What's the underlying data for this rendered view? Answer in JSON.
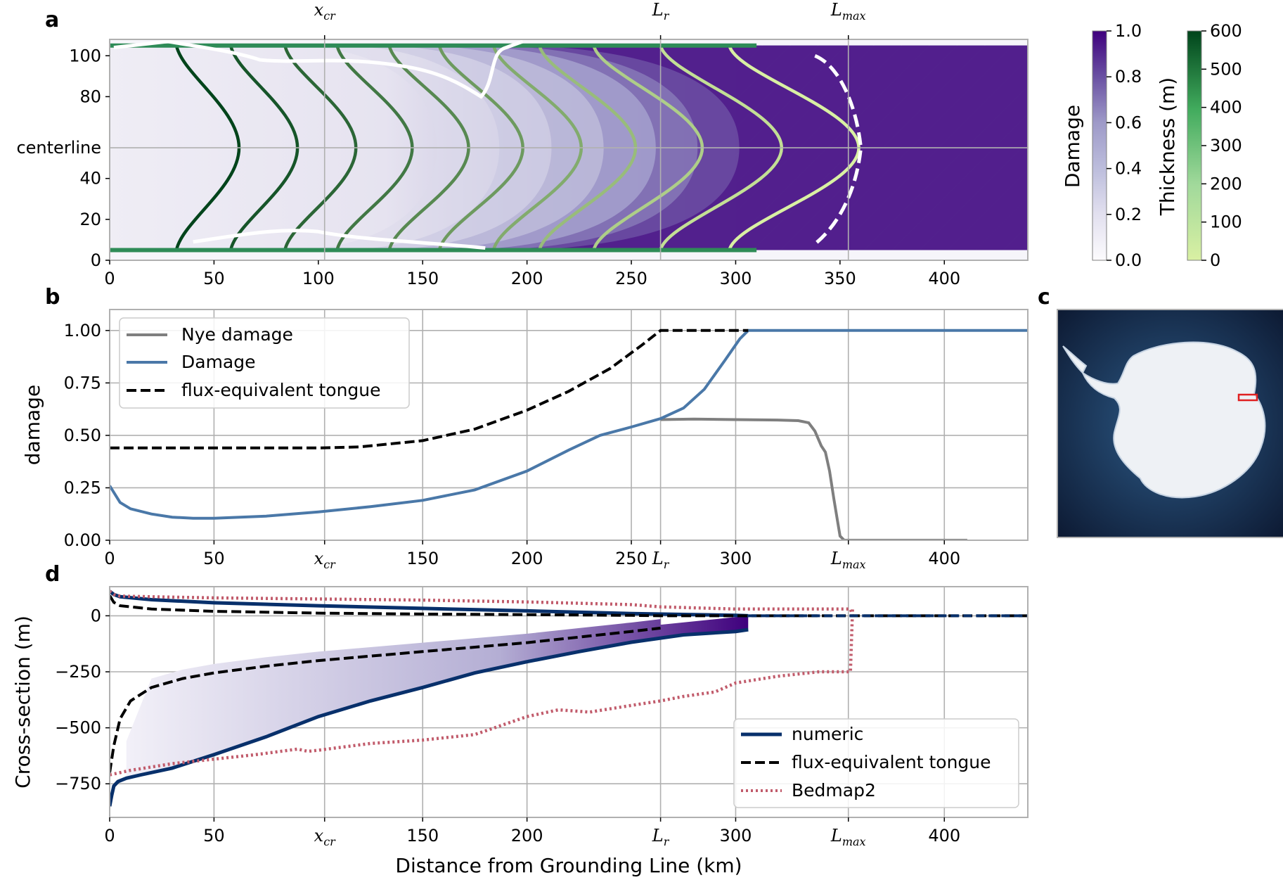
{
  "panel_letters": {
    "a": "a",
    "b": "b",
    "c": "c",
    "d": "d"
  },
  "markers": {
    "x_cr": 103,
    "L_r": 264,
    "L_max": 354
  },
  "marker_labels": {
    "x_cr": "x",
    "x_cr_sub": "cr",
    "L_r": "L",
    "L_r_sub": "r",
    "L_max": "L",
    "L_max_sub": "max"
  },
  "xlabel": "Distance from Grounding Line (km)",
  "colors": {
    "damage_dark": "#3f007d",
    "damage_light": "#efedf5",
    "thickness_dark": "#00441b",
    "thickness_light": "#d9f0a3",
    "nye": "#7f7f7f",
    "damage_line": "#4a78a8",
    "numeric": "#08306b",
    "bedmap": "#c15b6b",
    "grid": "#b0b0b0"
  },
  "chart_data": [
    {
      "panel": "a",
      "type": "heatmap",
      "xlim": [
        0,
        440
      ],
      "ylim": [
        0,
        108
      ],
      "xticks": [
        0,
        50,
        100,
        150,
        200,
        250,
        300,
        350,
        400
      ],
      "yticks": [
        0,
        20,
        40,
        80,
        100
      ],
      "ytick_labels": [
        "0",
        "20",
        "40",
        "80",
        "100"
      ],
      "centerline_label": "centerline",
      "centerline_y": 55,
      "channel_y": [
        5,
        105
      ],
      "damage_fill": "damage increases downstream; fully damaged (1.0) hatched region beyond about 300 km",
      "hatch_start": 300,
      "thickness_contours_km_at_centerline": [
        62,
        90,
        118,
        145,
        172,
        198,
        226,
        252,
        284,
        322,
        359
      ],
      "thickness_contour_edge_offset_km": [
        -30,
        -32,
        -34,
        -36,
        -38,
        -40,
        -42,
        -46,
        -52,
        -58,
        -62
      ],
      "thickness_contour_values_m": [
        600,
        550,
        500,
        450,
        400,
        350,
        300,
        250,
        200,
        150,
        100
      ],
      "colorbars": [
        {
          "label": "Damage",
          "ticks": [
            "0.0",
            "0.2",
            "0.4",
            "0.6",
            "0.8",
            "1.0"
          ],
          "min": 0,
          "max": 1
        },
        {
          "label": "Thickness (m)",
          "ticks": [
            "0",
            "100",
            "200",
            "300",
            "400",
            "500",
            "600"
          ],
          "min": 0,
          "max": 600
        }
      ]
    },
    {
      "panel": "b",
      "type": "line",
      "ylabel": "damage",
      "xlim": [
        0,
        440
      ],
      "ylim": [
        0,
        1.1
      ],
      "yticks": [
        "0.00",
        "0.25",
        "0.50",
        "0.75",
        "1.00"
      ],
      "xtick_values": [
        0,
        50,
        150,
        200,
        250,
        300,
        400
      ],
      "legend_position": "top-left",
      "series": [
        {
          "name": "Nye damage",
          "style": "solid-gray",
          "x": [
            264,
            280,
            300,
            320,
            330,
            335,
            338,
            341,
            343,
            345,
            347,
            349,
            350,
            352,
            360,
            380,
            411
          ],
          "y": [
            0.575,
            0.578,
            0.575,
            0.573,
            0.57,
            0.56,
            0.52,
            0.45,
            0.42,
            0.33,
            0.2,
            0.08,
            0.02,
            0.0,
            0.0,
            0.0,
            0.0
          ]
        },
        {
          "name": "Damage",
          "style": "solid-blue",
          "x": [
            0,
            5,
            10,
            20,
            30,
            40,
            50,
            75,
            100,
            125,
            150,
            175,
            200,
            220,
            235,
            250,
            264,
            275,
            285,
            295,
            302,
            306,
            320,
            360,
            400,
            440
          ],
          "y": [
            0.26,
            0.18,
            0.15,
            0.125,
            0.11,
            0.105,
            0.105,
            0.115,
            0.135,
            0.16,
            0.19,
            0.24,
            0.33,
            0.43,
            0.5,
            0.54,
            0.58,
            0.63,
            0.72,
            0.86,
            0.96,
            1.0,
            1.0,
            1.0,
            1.0,
            1.0
          ]
        },
        {
          "name": "flux-equivalent tongue",
          "style": "dashed-black",
          "x": [
            0,
            50,
            100,
            120,
            150,
            175,
            200,
            220,
            240,
            255,
            264,
            280,
            300,
            306
          ],
          "y": [
            0.44,
            0.44,
            0.44,
            0.445,
            0.475,
            0.53,
            0.62,
            0.71,
            0.82,
            0.93,
            1.0,
            1.0,
            1.0,
            1.0
          ]
        }
      ]
    },
    {
      "panel": "c",
      "type": "map",
      "description_marker": "red rectangle"
    },
    {
      "panel": "d",
      "type": "line",
      "ylabel": "Cross-section (m)",
      "xlim": [
        0,
        440
      ],
      "ylim": [
        -900,
        130
      ],
      "yticks": [
        "0",
        "−250",
        "−500",
        "−750"
      ],
      "ytick_values": [
        0,
        -250,
        -500,
        -750
      ],
      "xtick_values": [
        0,
        50,
        150,
        200,
        300,
        400
      ],
      "legend_position": "bottom-right",
      "series": [
        {
          "name": "numeric",
          "style": "solid-navy",
          "part": "surface",
          "x": [
            0,
            2,
            5,
            20,
            50,
            100,
            150,
            200,
            250,
            300,
            306
          ],
          "y": [
            110,
            95,
            85,
            72,
            58,
            45,
            33,
            22,
            10,
            2,
            0
          ]
        },
        {
          "name": "numeric",
          "style": "solid-navy",
          "part": "base",
          "x": [
            0,
            1,
            2,
            4,
            8,
            15,
            30,
            50,
            75,
            100,
            125,
            150,
            175,
            200,
            225,
            250,
            275,
            300,
            306
          ],
          "y": [
            -850,
            -800,
            -760,
            -740,
            -725,
            -710,
            -680,
            -620,
            -540,
            -450,
            -380,
            -320,
            -255,
            -205,
            -160,
            -118,
            -85,
            -70,
            -62
          ]
        },
        {
          "name": "flux-equivalent tongue",
          "style": "dashed-black",
          "part": "surface",
          "x": [
            0,
            2,
            5,
            20,
            50,
            100,
            150,
            200,
            250,
            264,
            300,
            440
          ],
          "y": [
            90,
            60,
            45,
            30,
            20,
            12,
            8,
            5,
            2,
            0,
            0,
            0
          ]
        },
        {
          "name": "flux-equivalent tongue",
          "style": "dashed-black",
          "part": "base",
          "x": [
            0,
            2,
            5,
            10,
            20,
            35,
            50,
            75,
            100,
            125,
            150,
            175,
            200,
            225,
            250,
            264
          ],
          "y": [
            -700,
            -580,
            -460,
            -380,
            -320,
            -280,
            -255,
            -225,
            -200,
            -180,
            -160,
            -140,
            -120,
            -95,
            -70,
            -55
          ]
        },
        {
          "name": "Bedmap2",
          "style": "dotted-red",
          "part": "surface",
          "x": [
            0,
            2,
            5,
            20,
            50,
            100,
            150,
            200,
            250,
            264,
            300,
            340,
            355,
            356
          ],
          "y": [
            110,
            95,
            88,
            85,
            80,
            75,
            70,
            62,
            50,
            40,
            30,
            30,
            30,
            0
          ]
        },
        {
          "name": "Bedmap2",
          "style": "dotted-red",
          "part": "base",
          "x": [
            0,
            10,
            30,
            50,
            70,
            90,
            95,
            100,
            125,
            150,
            175,
            200,
            215,
            230,
            250,
            264,
            275,
            290,
            300,
            320,
            340,
            355,
            356
          ],
          "y": [
            -710,
            -690,
            -660,
            -640,
            -620,
            -595,
            -605,
            -600,
            -570,
            -555,
            -530,
            -450,
            -420,
            -430,
            -400,
            -380,
            -360,
            -340,
            -300,
            -270,
            -250,
            -250,
            30
          ]
        },
        {
          "name": "",
          "style": "dashed-navy",
          "part": "sea-level",
          "x": [
            306,
            440
          ],
          "y": [
            0,
            0
          ]
        }
      ]
    }
  ]
}
